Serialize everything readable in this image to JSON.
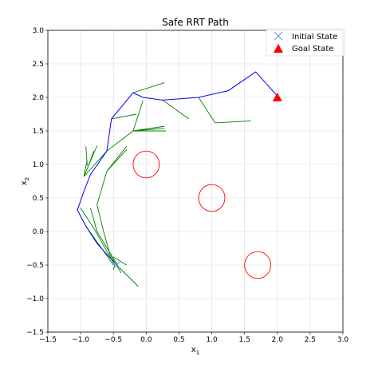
{
  "chart_data": {
    "type": "line",
    "title": "Safe RRT Path",
    "xlabel_main": "x",
    "xlabel_sub": "1",
    "ylabel_main": "x",
    "ylabel_sub": "2",
    "xlim": [
      -1.5,
      3.0
    ],
    "ylim": [
      -1.5,
      3.0
    ],
    "x_ticks": [
      "−1.5",
      "−1.0",
      "−0.5",
      "0.0",
      "0.5",
      "1.0",
      "1.5",
      "2.0",
      "2.5",
      "3.0"
    ],
    "y_ticks": [
      "−1.5",
      "−1.0",
      "−0.5",
      "0.0",
      "0.5",
      "1.0",
      "1.5",
      "2.0",
      "2.5",
      "3.0"
    ],
    "grid": true,
    "legend_position": "top-right",
    "legend": [
      {
        "label": "Initial State",
        "marker": "x",
        "color": "#7b7bff"
      },
      {
        "label": "Goal State",
        "marker": "triangle",
        "color": "#ff0000"
      }
    ],
    "initial_state": [
      -0.45,
      -0.5
    ],
    "goal_state": [
      2.0,
      2.0
    ],
    "path_color": "#0000ff",
    "tree_color": "#008000",
    "obstacle_color": "#ff0000",
    "obstacles": [
      {
        "center": [
          0.0,
          1.0
        ],
        "radius": 0.2
      },
      {
        "center": [
          1.0,
          0.5
        ],
        "radius": 0.2
      },
      {
        "center": [
          1.7,
          -0.5
        ],
        "radius": 0.2
      }
    ],
    "path": [
      [
        -0.45,
        -0.5
      ],
      [
        -0.75,
        -0.18
      ],
      [
        -0.92,
        0.08
      ],
      [
        -1.05,
        0.32
      ],
      [
        -0.95,
        0.6
      ],
      [
        -0.85,
        0.85
      ],
      [
        -0.6,
        1.2
      ],
      [
        -0.53,
        1.68
      ],
      [
        -0.2,
        2.07
      ],
      [
        -0.05,
        2.0
      ],
      [
        0.25,
        1.96
      ],
      [
        0.8,
        2.0
      ],
      [
        1.25,
        2.1
      ],
      [
        1.67,
        2.38
      ],
      [
        2.0,
        2.02
      ]
    ],
    "tree_edges": [
      [
        [
          -0.2,
          2.07
        ],
        [
          0.28,
          2.22
        ]
      ],
      [
        [
          -0.53,
          1.68
        ],
        [
          -0.15,
          1.75
        ]
      ],
      [
        [
          -0.2,
          1.5
        ],
        [
          -0.05,
          1.95
        ]
      ],
      [
        [
          -0.2,
          1.5
        ],
        [
          0.28,
          1.57
        ]
      ],
      [
        [
          -0.2,
          1.5
        ],
        [
          0.28,
          1.54
        ]
      ],
      [
        [
          -0.2,
          1.5
        ],
        [
          0.3,
          1.5
        ]
      ],
      [
        [
          -0.6,
          1.2
        ],
        [
          -0.2,
          1.5
        ]
      ],
      [
        [
          0.25,
          1.96
        ],
        [
          0.65,
          1.68
        ]
      ],
      [
        [
          0.8,
          2.0
        ],
        [
          1.05,
          1.62
        ]
      ],
      [
        [
          1.05,
          1.62
        ],
        [
          1.6,
          1.65
        ]
      ],
      [
        [
          -0.6,
          1.2
        ],
        [
          -0.95,
          0.82
        ]
      ],
      [
        [
          -0.95,
          0.82
        ],
        [
          -0.75,
          1.28
        ]
      ],
      [
        [
          -0.95,
          0.82
        ],
        [
          -0.9,
          1.07
        ]
      ],
      [
        [
          -0.92,
          1.27
        ],
        [
          -0.9,
          0.98
        ]
      ],
      [
        [
          -0.88,
          0.98
        ],
        [
          -0.8,
          1.2
        ]
      ],
      [
        [
          -0.6,
          0.9
        ],
        [
          -0.3,
          1.27
        ]
      ],
      [
        [
          -0.6,
          0.9
        ],
        [
          -0.3,
          1.22
        ]
      ],
      [
        [
          -0.6,
          0.9
        ],
        [
          -0.75,
          0.4
        ]
      ],
      [
        [
          -0.75,
          0.4
        ],
        [
          -0.65,
          0.0
        ]
      ],
      [
        [
          -0.65,
          0.0
        ],
        [
          -0.55,
          -0.35
        ]
      ],
      [
        [
          -1.0,
          0.35
        ],
        [
          -0.8,
          0.05
        ]
      ],
      [
        [
          -0.85,
          0.35
        ],
        [
          -0.75,
          0.0
        ]
      ],
      [
        [
          -0.8,
          0.05
        ],
        [
          -0.48,
          -0.5
        ]
      ],
      [
        [
          -0.75,
          0.0
        ],
        [
          -0.42,
          -0.53
        ]
      ],
      [
        [
          -0.55,
          -0.35
        ],
        [
          -0.38,
          -0.62
        ]
      ],
      [
        [
          -0.92,
          0.08
        ],
        [
          -0.5,
          -0.5
        ]
      ],
      [
        [
          -0.5,
          -0.38
        ],
        [
          -0.3,
          -0.5
        ]
      ],
      [
        [
          -0.45,
          -0.5
        ],
        [
          -0.12,
          -0.82
        ]
      ],
      [
        [
          -0.48,
          -0.5
        ],
        [
          -0.5,
          -0.57
        ]
      ]
    ]
  }
}
